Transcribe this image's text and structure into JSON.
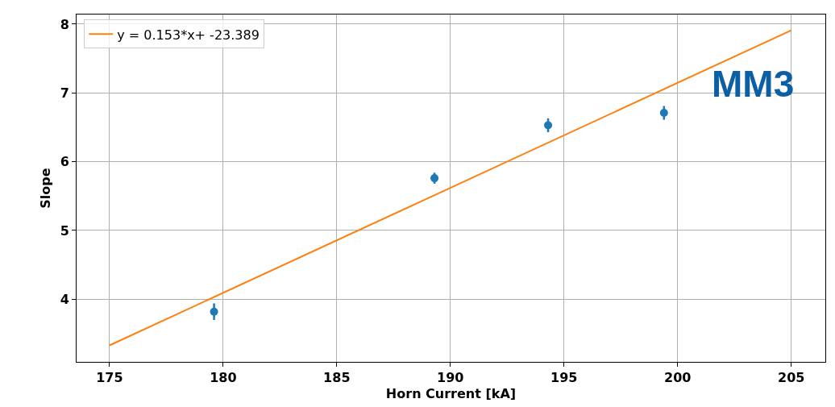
{
  "chart_data": {
    "type": "scatter",
    "xlabel": "Horn Current [kA]",
    "ylabel": "Slope",
    "xlim": [
      173.55,
      206.5
    ],
    "xticks": [
      175,
      180,
      185,
      190,
      195,
      200,
      205
    ],
    "ylim": [
      3.09,
      8.14
    ],
    "yticks": [
      4,
      5,
      6,
      7,
      8
    ],
    "grid": true,
    "legend": "top left",
    "marker": "circle",
    "series": [
      {
        "color": "#1f77b4",
        "x": [
          179.6,
          189.3,
          194.3,
          199.4
        ],
        "values": [
          3.82,
          5.76,
          6.53,
          6.71
        ],
        "errors": [
          0.12,
          0.08,
          0.1,
          0.1
        ]
      },
      {
        "type": "line",
        "name": "y = 0.153*x+ -23.389",
        "color": "#ff7f0e",
        "x": [
          175,
          205
        ],
        "values": [
          3.33,
          7.91
        ],
        "marker": "none",
        "line_style": "solid"
      }
    ],
    "annotations": [
      "MM3"
    ]
  }
}
